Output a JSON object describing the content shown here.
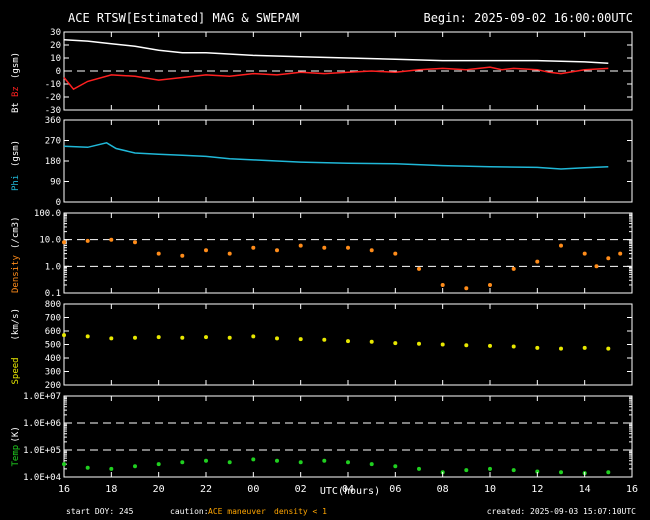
{
  "header": {
    "title": "ACE RTSW[Estimated] MAG & SWEPAM",
    "begin": "Begin: 2025-09-02 16:00:00UTC"
  },
  "colors": {
    "background": "#000000",
    "axes": "#ffffff",
    "bt": "#ffffff",
    "bz": "#ff2020",
    "phi": "#20b8d8",
    "density": "#ff8c1a",
    "speed": "#e8e800",
    "temp": "#20d020",
    "caution": "#ffa500"
  },
  "x_axis": {
    "label": "UTC(hours)",
    "start_hour": 16,
    "span_hours": 24,
    "tick_labels": [
      "16",
      "18",
      "20",
      "22",
      "00",
      "02",
      "04",
      "06",
      "08",
      "10",
      "12",
      "14",
      "16"
    ]
  },
  "footer": {
    "start_doy": "start DOY: 245",
    "caution_label": "caution:",
    "ace_maneuver": "ACE maneuver",
    "density_low": "density < 1",
    "created": "created: 2025-09-03 15:07:10UTC"
  },
  "chart_data": [
    {
      "id": "mag-bz",
      "type": "line",
      "ylabel_left": "Bt",
      "ylabel_mid": "Bz",
      "ylabel_right": "(gsm)",
      "y_ticks": [
        "30",
        "20",
        "10",
        "0",
        "-10",
        "-20",
        "-30"
      ],
      "ylim": [
        -30,
        30
      ],
      "ref_lines": [
        0
      ],
      "series": [
        {
          "name": "Bt",
          "color_key": "bt",
          "points": [
            [
              0,
              24
            ],
            [
              1,
              23
            ],
            [
              2,
              21
            ],
            [
              3,
              19
            ],
            [
              4,
              16
            ],
            [
              5,
              14
            ],
            [
              6,
              14
            ],
            [
              8,
              12
            ],
            [
              10,
              11
            ],
            [
              12,
              10
            ],
            [
              14,
              9
            ],
            [
              16,
              8
            ],
            [
              18,
              8
            ],
            [
              20,
              8
            ],
            [
              22,
              7
            ],
            [
              23,
              6
            ]
          ]
        },
        {
          "name": "Bz",
          "color_key": "bz",
          "points": [
            [
              0,
              -5
            ],
            [
              0.4,
              -14
            ],
            [
              1,
              -8
            ],
            [
              2,
              -3
            ],
            [
              3,
              -4
            ],
            [
              4,
              -7
            ],
            [
              5,
              -5
            ],
            [
              6,
              -3
            ],
            [
              7,
              -4
            ],
            [
              8,
              -2
            ],
            [
              9,
              -3
            ],
            [
              10,
              -1
            ],
            [
              11,
              -2
            ],
            [
              12,
              -1
            ],
            [
              13,
              0
            ],
            [
              14,
              -1
            ],
            [
              15,
              1
            ],
            [
              16,
              2
            ],
            [
              17,
              1
            ],
            [
              18,
              3
            ],
            [
              18.5,
              1
            ],
            [
              19,
              2
            ],
            [
              20,
              1
            ],
            [
              20.5,
              -1
            ],
            [
              21,
              -2
            ],
            [
              22,
              1
            ],
            [
              23,
              2
            ]
          ]
        }
      ]
    },
    {
      "id": "mag-phi",
      "type": "line",
      "ylabel_left": "Phi",
      "ylabel_right": "(gsm)",
      "y_ticks": [
        "360",
        "270",
        "180",
        "90",
        "0"
      ],
      "ylim": [
        0,
        360
      ],
      "series": [
        {
          "name": "Phi",
          "color_key": "phi",
          "points": [
            [
              0,
              245
            ],
            [
              1,
              240
            ],
            [
              1.8,
              260
            ],
            [
              2.2,
              235
            ],
            [
              3,
              215
            ],
            [
              4,
              210
            ],
            [
              5,
              205
            ],
            [
              6,
              200
            ],
            [
              7,
              190
            ],
            [
              8,
              185
            ],
            [
              9,
              180
            ],
            [
              10,
              175
            ],
            [
              12,
              170
            ],
            [
              14,
              168
            ],
            [
              16,
              160
            ],
            [
              18,
              155
            ],
            [
              20,
              152
            ],
            [
              21,
              145
            ],
            [
              22,
              150
            ],
            [
              23,
              155
            ]
          ]
        }
      ]
    },
    {
      "id": "density",
      "type": "scatter",
      "scale": "log",
      "ylabel_left": "Density",
      "ylabel_right": "(/cm3)",
      "y_ticks": [
        "100.0",
        "10.0",
        "1.0",
        "0.1"
      ],
      "ylim": [
        0.1,
        100
      ],
      "ref_lines": [
        10,
        1
      ],
      "series": [
        {
          "name": "Density",
          "color_key": "density",
          "points": [
            [
              0,
              8
            ],
            [
              1,
              9
            ],
            [
              2,
              10
            ],
            [
              3,
              8
            ],
            [
              4,
              3
            ],
            [
              5,
              2.5
            ],
            [
              6,
              4
            ],
            [
              7,
              3
            ],
            [
              8,
              5
            ],
            [
              9,
              4
            ],
            [
              10,
              6
            ],
            [
              11,
              5
            ],
            [
              12,
              5
            ],
            [
              13,
              4
            ],
            [
              14,
              3
            ],
            [
              15,
              0.8
            ],
            [
              16,
              0.2
            ],
            [
              17,
              0.15
            ],
            [
              18,
              0.2
            ],
            [
              19,
              0.8
            ],
            [
              20,
              1.5
            ],
            [
              21,
              6
            ],
            [
              22,
              3
            ],
            [
              22.5,
              1
            ],
            [
              23,
              2
            ],
            [
              23.5,
              3
            ]
          ]
        }
      ]
    },
    {
      "id": "speed",
      "type": "scatter",
      "ylabel_left": "Speed",
      "ylabel_right": "(km/s)",
      "y_ticks": [
        "800",
        "700",
        "600",
        "500",
        "400",
        "300",
        "200"
      ],
      "ylim": [
        200,
        800
      ],
      "series": [
        {
          "name": "Speed",
          "color_key": "speed",
          "points": [
            [
              0,
              570
            ],
            [
              1,
              560
            ],
            [
              2,
              545
            ],
            [
              3,
              550
            ],
            [
              4,
              555
            ],
            [
              5,
              550
            ],
            [
              6,
              555
            ],
            [
              7,
              550
            ],
            [
              8,
              560
            ],
            [
              9,
              545
            ],
            [
              10,
              540
            ],
            [
              11,
              535
            ],
            [
              12,
              525
            ],
            [
              13,
              520
            ],
            [
              14,
              510
            ],
            [
              15,
              505
            ],
            [
              16,
              500
            ],
            [
              17,
              495
            ],
            [
              18,
              490
            ],
            [
              19,
              485
            ],
            [
              20,
              475
            ],
            [
              21,
              470
            ],
            [
              22,
              475
            ],
            [
              23,
              470
            ]
          ]
        }
      ]
    },
    {
      "id": "temp",
      "type": "scatter",
      "scale": "log",
      "ylabel_left": "Temp",
      "ylabel_right": "(K)",
      "y_ticks": [
        "1.0E+07",
        "1.0E+06",
        "1.0E+05",
        "1.0E+04"
      ],
      "ylim": [
        10000,
        10000000
      ],
      "ref_lines": [
        1000000,
        100000
      ],
      "series": [
        {
          "name": "Temp",
          "color_key": "temp",
          "points": [
            [
              0,
              30000
            ],
            [
              1,
              22000
            ],
            [
              2,
              20000
            ],
            [
              3,
              25000
            ],
            [
              4,
              30000
            ],
            [
              5,
              35000
            ],
            [
              6,
              40000
            ],
            [
              7,
              35000
            ],
            [
              8,
              45000
            ],
            [
              9,
              40000
            ],
            [
              10,
              35000
            ],
            [
              11,
              40000
            ],
            [
              12,
              35000
            ],
            [
              13,
              30000
            ],
            [
              14,
              25000
            ],
            [
              15,
              20000
            ],
            [
              16,
              15000
            ],
            [
              17,
              18000
            ],
            [
              18,
              20000
            ],
            [
              19,
              18000
            ],
            [
              20,
              16000
            ],
            [
              21,
              15000
            ],
            [
              22,
              14000
            ],
            [
              23,
              15000
            ]
          ]
        }
      ]
    }
  ]
}
